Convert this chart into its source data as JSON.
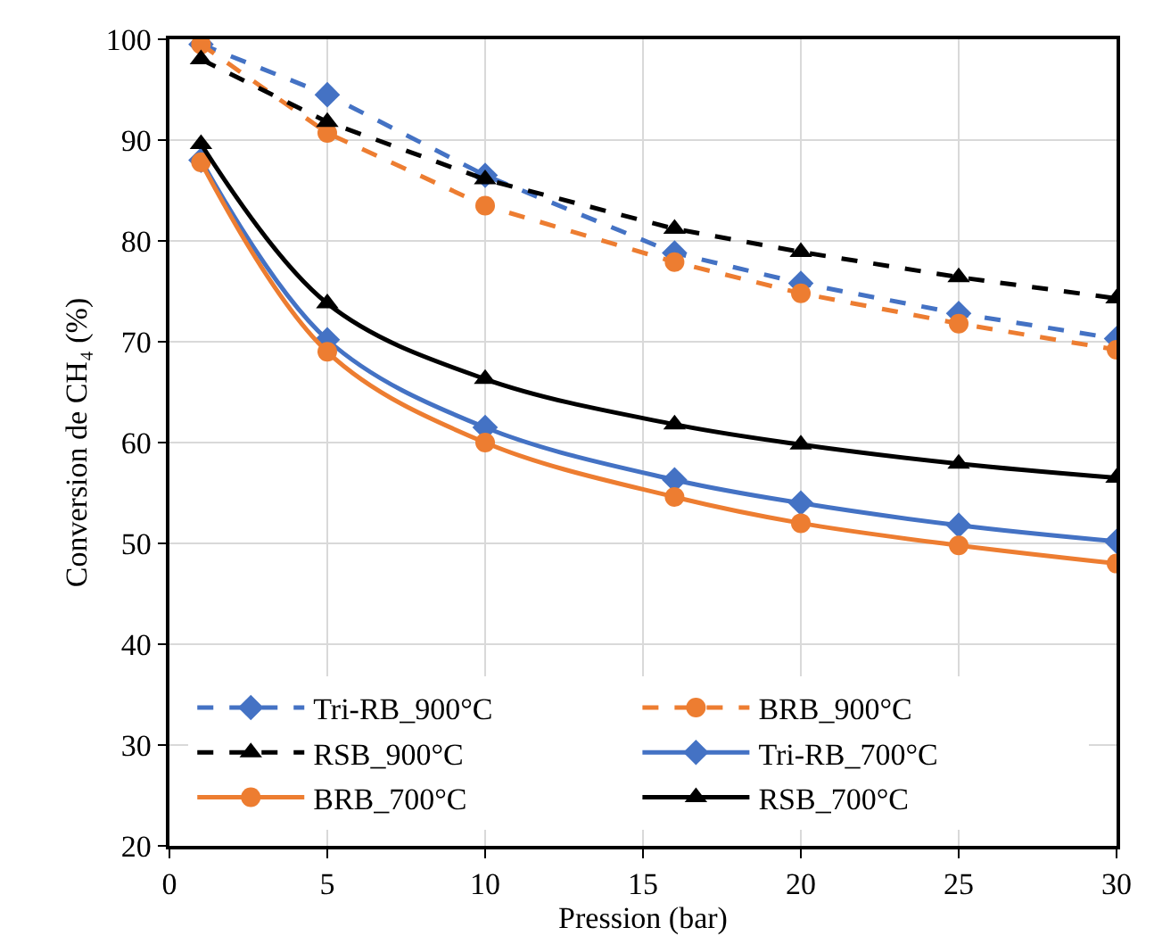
{
  "chart_data": {
    "type": "line",
    "xlabel": "Pression (bar)",
    "ylabel": "Conversion de CH₄ (%)",
    "x": [
      1,
      5,
      10,
      16,
      20,
      25,
      30
    ],
    "xlim": [
      0,
      30
    ],
    "xticks": [
      0,
      5,
      10,
      15,
      20,
      25,
      30
    ],
    "ylim": [
      20,
      100
    ],
    "yticks": [
      20,
      30,
      40,
      50,
      60,
      70,
      80,
      90,
      100
    ],
    "grid": true,
    "legend": "bottom left",
    "series": [
      {
        "name": "Tri-RB_900°C",
        "color": "#4472c4",
        "marker": "diamond",
        "line_style": "dashed",
        "values": [
          99.5,
          94.5,
          86.5,
          78.8,
          75.8,
          72.8,
          70.3
        ]
      },
      {
        "name": "BRB_900°C",
        "color": "#ed7d31",
        "marker": "circle",
        "line_style": "dashed",
        "values": [
          99.5,
          90.7,
          83.5,
          77.9,
          74.8,
          71.8,
          69.2
        ]
      },
      {
        "name": "RSB_900°C",
        "color": "#000000",
        "marker": "triangle",
        "line_style": "dashed",
        "values": [
          98.0,
          91.8,
          86.1,
          81.2,
          78.9,
          76.4,
          74.3
        ]
      },
      {
        "name": "Tri-RB_700°C",
        "color": "#4472c4",
        "marker": "diamond",
        "line_style": "solid",
        "values": [
          88.0,
          70.2,
          61.5,
          56.3,
          54.0,
          51.8,
          50.2
        ]
      },
      {
        "name": "BRB_700°C",
        "color": "#ed7d31",
        "marker": "circle",
        "line_style": "solid",
        "values": [
          87.8,
          69.0,
          60.0,
          54.6,
          52.0,
          49.8,
          48.0
        ]
      },
      {
        "name": "RSB_700°C",
        "color": "#000000",
        "marker": "triangle",
        "line_style": "solid",
        "values": [
          89.6,
          73.8,
          66.3,
          61.8,
          59.8,
          57.9,
          56.5
        ]
      }
    ]
  }
}
